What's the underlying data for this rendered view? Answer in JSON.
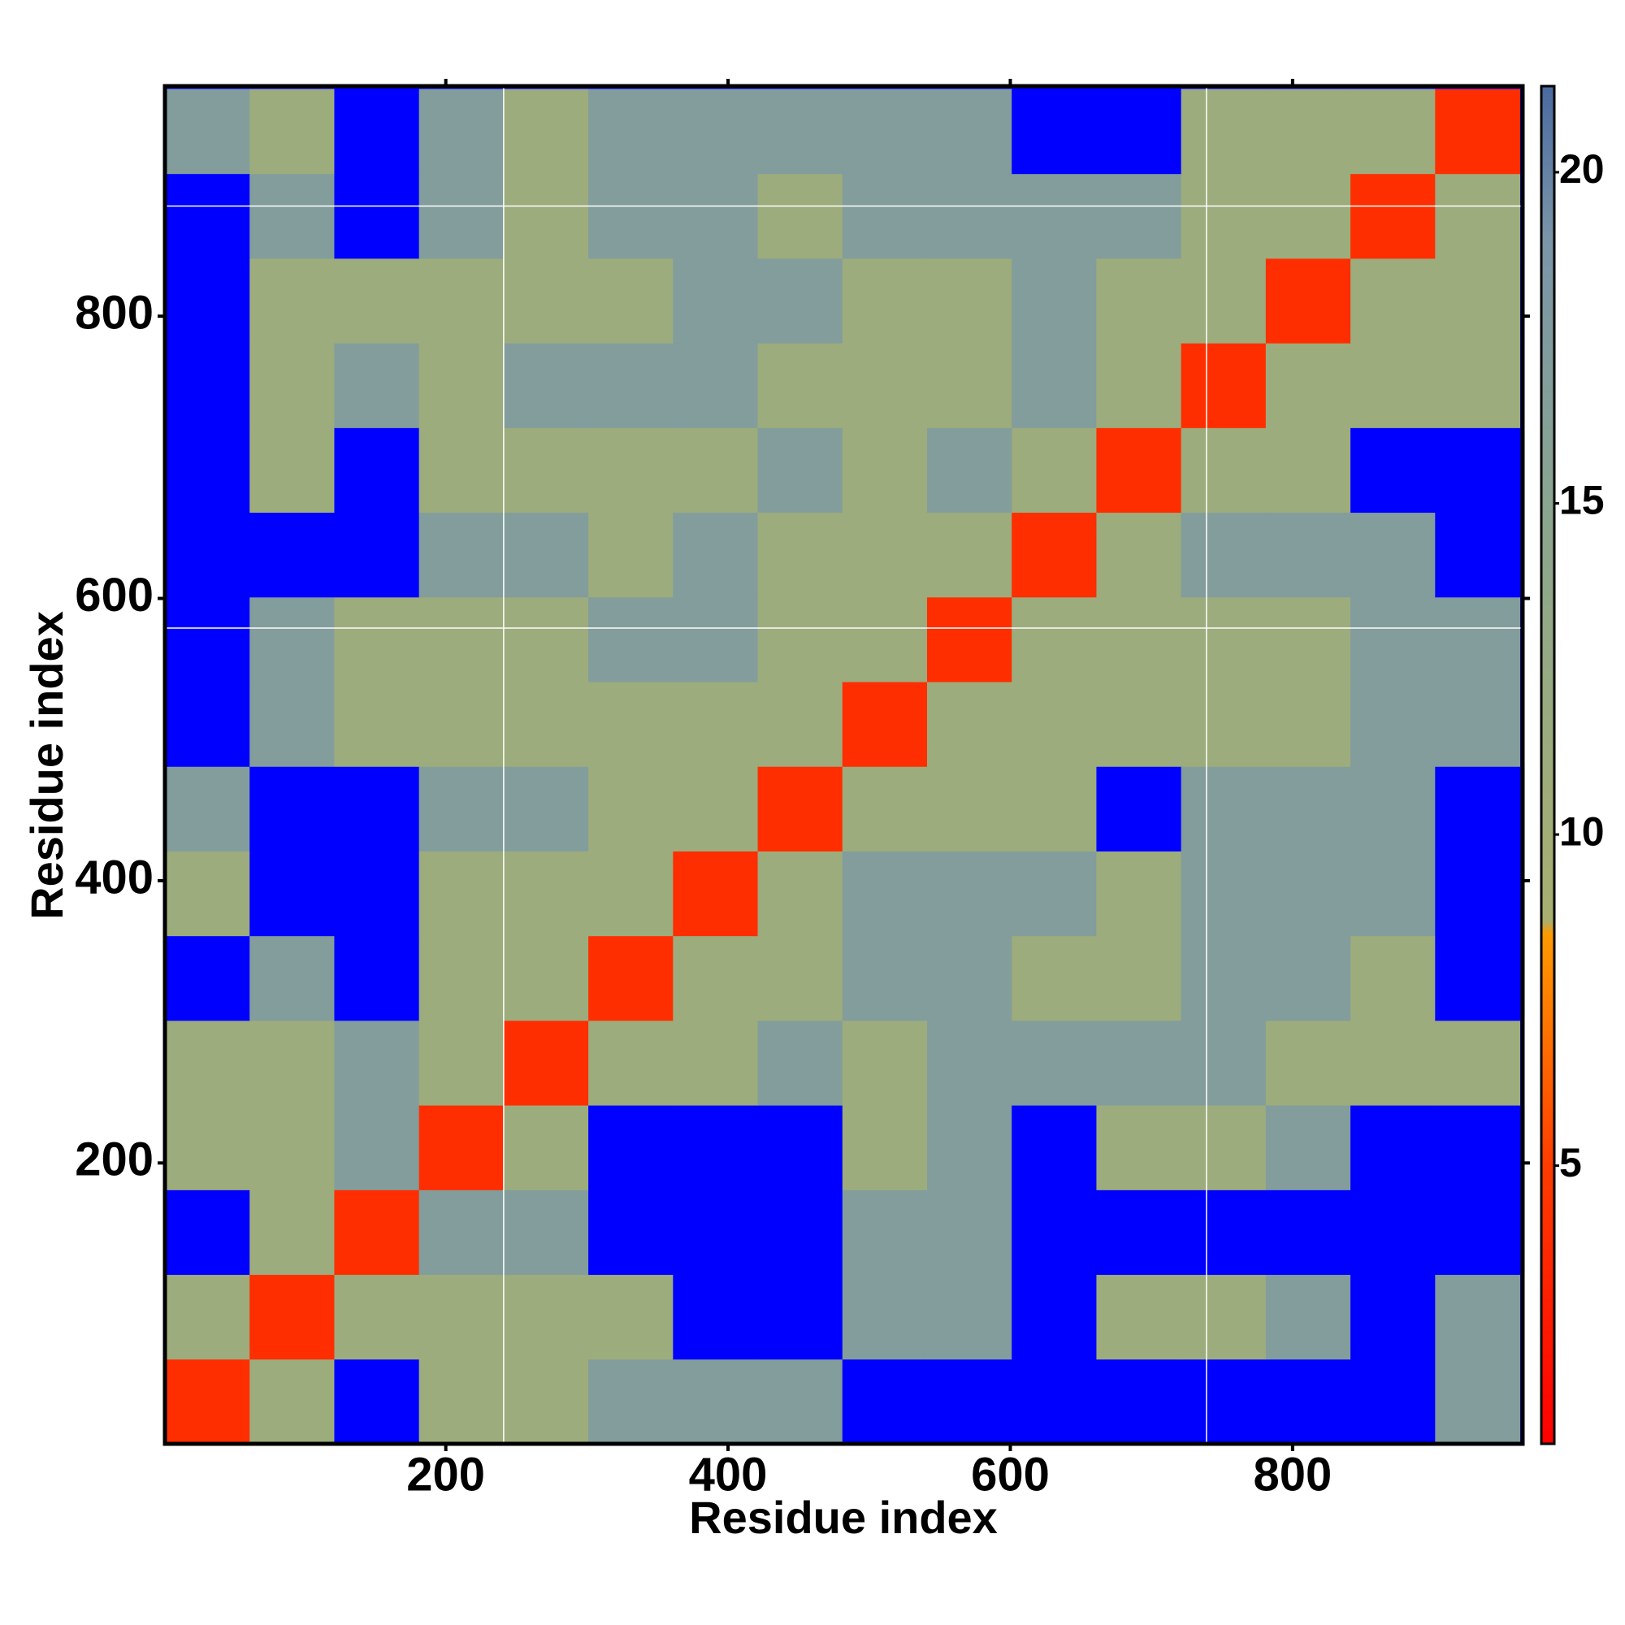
{
  "chart_data": {
    "type": "heatmap",
    "x_label": "Residue index",
    "y_label": "Residue index",
    "xlim": [
      1,
      963
    ],
    "ylim": [
      1,
      963
    ],
    "xticks": [
      200,
      400,
      600,
      800
    ],
    "yticks": [
      200,
      400,
      600,
      800
    ],
    "x_bins": [
      1,
      61,
      121,
      181,
      241,
      301,
      361,
      421,
      481,
      541,
      601,
      661,
      721,
      781,
      841,
      901,
      961
    ],
    "y_bins": [
      1,
      61,
      121,
      181,
      241,
      301,
      361,
      421,
      481,
      541,
      601,
      661,
      721,
      781,
      841,
      901,
      961
    ],
    "values": [
      [
        4,
        11,
        22,
        11,
        11,
        17,
        17,
        17,
        22,
        22,
        22,
        22,
        22,
        22,
        22,
        17
      ],
      [
        11,
        4,
        11,
        11,
        11,
        11,
        22,
        22,
        17,
        17,
        22,
        11,
        11,
        17,
        22,
        17
      ],
      [
        22,
        11,
        4,
        17,
        17,
        22,
        22,
        22,
        17,
        17,
        22,
        22,
        22,
        22,
        22,
        22
      ],
      [
        11,
        11,
        17,
        4,
        11,
        22,
        22,
        22,
        11,
        17,
        22,
        11,
        11,
        17,
        22,
        22
      ],
      [
        11,
        11,
        17,
        11,
        4,
        11,
        11,
        17,
        11,
        17,
        17,
        17,
        17,
        11,
        11,
        11
      ],
      [
        22,
        17,
        22,
        11,
        11,
        4,
        11,
        11,
        17,
        17,
        11,
        11,
        17,
        17,
        11,
        22
      ],
      [
        11,
        22,
        22,
        11,
        11,
        11,
        4,
        11,
        17,
        17,
        17,
        11,
        17,
        17,
        17,
        22
      ],
      [
        17,
        22,
        22,
        17,
        17,
        11,
        11,
        4,
        11,
        11,
        11,
        22,
        17,
        17,
        17,
        22
      ],
      [
        22,
        17,
        11,
        11,
        11,
        11,
        11,
        11,
        4,
        11,
        11,
        11,
        11,
        11,
        17,
        17
      ],
      [
        22,
        17,
        11,
        11,
        11,
        17,
        17,
        11,
        11,
        4,
        11,
        11,
        11,
        11,
        17,
        17
      ],
      [
        22,
        22,
        22,
        17,
        17,
        11,
        17,
        11,
        11,
        11,
        4,
        11,
        17,
        17,
        17,
        22
      ],
      [
        22,
        11,
        22,
        11,
        11,
        11,
        11,
        17,
        11,
        17,
        11,
        4,
        11,
        11,
        22,
        22
      ],
      [
        22,
        11,
        17,
        11,
        17,
        17,
        17,
        11,
        11,
        11,
        17,
        11,
        4,
        11,
        11,
        11
      ],
      [
        22,
        11,
        11,
        11,
        11,
        11,
        17,
        17,
        11,
        11,
        17,
        11,
        11,
        4,
        11,
        11
      ],
      [
        22,
        17,
        22,
        17,
        11,
        17,
        17,
        11,
        17,
        17,
        17,
        17,
        11,
        11,
        4,
        11
      ],
      [
        17,
        11,
        22,
        17,
        11,
        17,
        17,
        17,
        17,
        17,
        22,
        22,
        11,
        11,
        11,
        4
      ]
    ],
    "over_color": "#0000ff",
    "ref_lines": {
      "x": [
        241,
        739
      ],
      "y": [
        579,
        878
      ],
      "color": "#ffffff"
    },
    "colorbar": {
      "lim": [
        0.8,
        21.3
      ],
      "ticks": [
        5,
        10,
        15,
        20
      ],
      "stops": [
        {
          "value": 0.8,
          "color": "#ff0000"
        },
        {
          "value": 5,
          "color": "#ff3c00"
        },
        {
          "value": 8.5,
          "color": "#ff9a00"
        },
        {
          "value": 8.7,
          "color": "#a8b070"
        },
        {
          "value": 15,
          "color": "#8aa590"
        },
        {
          "value": 19,
          "color": "#7a95a8"
        },
        {
          "value": 21.3,
          "color": "#4a6aa0"
        }
      ]
    }
  }
}
